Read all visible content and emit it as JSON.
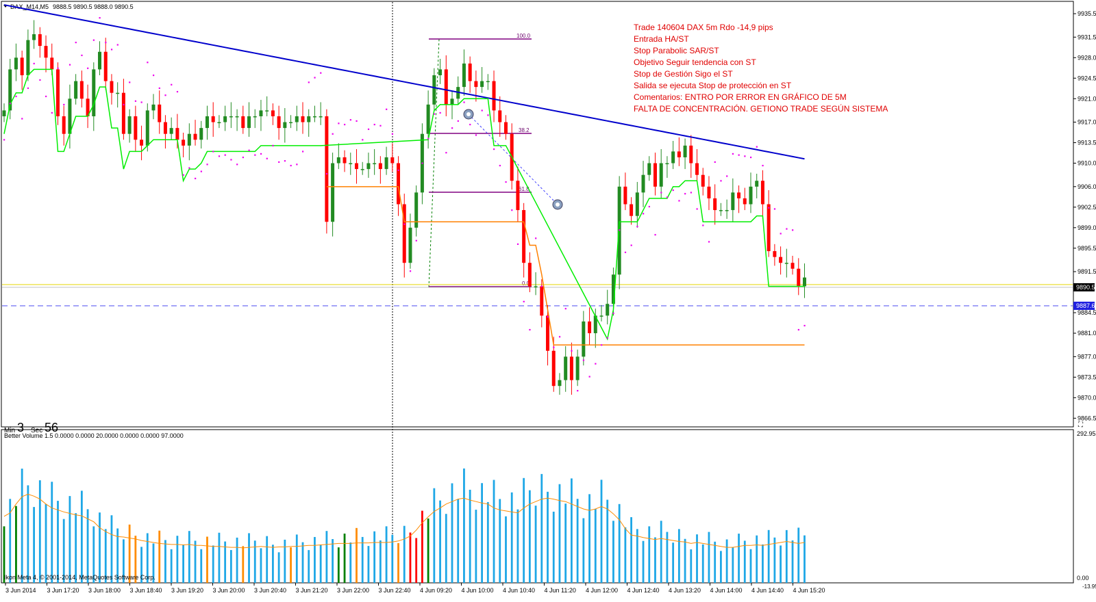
{
  "header": {
    "symbol": "DAX_M14,M5",
    "ohlc": "9888.5 9890.5 9888.0 9890.5"
  },
  "timer": {
    "min_label": "Min",
    "min_value": "3",
    "sec_label": "Sec",
    "sec_value": "56"
  },
  "annotation": [
    "Trade 140604 DAX 5m Rdo -14,9 pips",
    "Entrada HA/ST",
    "Stop Parabolic SAR/ST",
    "Objetivo Seguir tendencia con ST",
    "Stop de Gestión  Sigo el ST",
    "Salida se ejecuta Stop de protección en ST",
    "Comentarios: ENTRO POR ERROR EN GRÁFICO DE 5M",
    "FALTA DE CONCENTRACIÓN. GETIONO TRADE SEGÚN SISTEMA"
  ],
  "fib_levels": [
    "100.0",
    "38.2",
    "61.8",
    "0.0"
  ],
  "volume_header": "Better Volume 1.5 0.0000 0.0000 20.0000 0.0000 0.0000 97.0000",
  "copyright": "Ikon Meta 4, © 2001-2014, MetaQuotes Software Corp.",
  "price_axis": [
    "9935.5",
    "9931.5",
    "9928.0",
    "9924.5",
    "9921.0",
    "9917.0",
    "9913.5",
    "9910.0",
    "9906.0",
    "9902.5",
    "9899.0",
    "9895.5",
    "9891.5",
    "9884.5",
    "9881.0",
    "9877.0",
    "9873.5",
    "9870.0",
    "9866.5"
  ],
  "price_badges": {
    "current": "9890.5",
    "line": "9887.6"
  },
  "volume_axis": [
    "292.95",
    "0.00",
    "-13.95"
  ],
  "time_axis": [
    "3 Jun 2014",
    "3 Jun 17:20",
    "3 Jun 18:00",
    "3 Jun 18:40",
    "3 Jun 19:20",
    "3 Jun 20:00",
    "3 Jun 20:40",
    "3 Jun 21:20",
    "3 Jun 22:00",
    "3 Jun 22:40",
    "4 Jun 09:20",
    "4 Jun 10:00",
    "4 Jun 10:40",
    "4 Jun 11:20",
    "4 Jun 12:00",
    "4 Jun 12:40",
    "4 Jun 13:20",
    "4 Jun 14:00",
    "4 Jun 14:40",
    "4 Jun 15:20"
  ],
  "colors": {
    "bull": "#228b22",
    "bear": "#ff0000",
    "ma": "#0000cc",
    "supertrend_up": "#00ee00",
    "supertrend_down": "#ff8000",
    "sar": "#ee00ee",
    "volume": "#1ea7e6",
    "volume_ma": "#ff8c00",
    "fib": "#800080"
  },
  "chart_data": {
    "type": "candlestick",
    "title": "DAX_M14,M5",
    "ylim": [
      9866.5,
      9937.5
    ],
    "closes": [
      9919,
      9926,
      9928,
      9925,
      9931,
      9932,
      9930,
      9928,
      9926,
      9918,
      9915,
      9921,
      9924,
      9921,
      9918,
      9926,
      9929,
      9924,
      9922,
      9922,
      9915,
      9918,
      9914,
      9913,
      9919,
      9920,
      9917,
      9915,
      9916,
      9914,
      9913,
      9915,
      9914,
      9916,
      9918,
      9917,
      9917,
      9918,
      9918,
      9918,
      9916,
      9918,
      9918,
      9919,
      9919,
      9918,
      9916,
      9917,
      9917,
      9918,
      9917,
      9918,
      9918,
      9918,
      9900,
      9910,
      9911,
      9910,
      9910,
      9909,
      9909,
      9910,
      9910,
      9909,
      9911,
      9910,
      9903,
      9893,
      9899,
      9905,
      9915,
      9920,
      9925,
      9926,
      9920,
      9921,
      9923,
      9927,
      9924,
      9923,
      9924,
      9924,
      9919,
      9917,
      9915,
      9907,
      9902,
      9893,
      9889,
      9889,
      9884,
      9878,
      9872,
      9873,
      9877,
      9873,
      9877,
      9883,
      9881,
      9884,
      9884,
      9886,
      9891,
      9906,
      9903,
      9901,
      9905,
      9908,
      9910,
      9906,
      9910,
      9910,
      9912,
      9911,
      9913,
      9910,
      9908,
      9906,
      9904,
      9902,
      9902,
      9902,
      9905,
      9904,
      9903,
      9906,
      9907,
      9903,
      9895,
      9894,
      9893,
      9893,
      9892,
      9889,
      9890.5
    ],
    "volume_ma": [
      135,
      142,
      160,
      175,
      180,
      176,
      170,
      160,
      152,
      148,
      144,
      141,
      138,
      136,
      130,
      124,
      112,
      104,
      98,
      94,
      93,
      91,
      89,
      86,
      84,
      82,
      80,
      79,
      78,
      78,
      77,
      78,
      76,
      76,
      75,
      74,
      74,
      73,
      72,
      72,
      71,
      72,
      73,
      74,
      73,
      72,
      73,
      73,
      74,
      74,
      75,
      76,
      76,
      77,
      78,
      79,
      80,
      80,
      80,
      81,
      81,
      81,
      82,
      82,
      82,
      83,
      85,
      89,
      95,
      107,
      122,
      134,
      145,
      152,
      160,
      165,
      170,
      172,
      168,
      165,
      162,
      160,
      152,
      148,
      146,
      144,
      142,
      152,
      160,
      165,
      170,
      172,
      170,
      167,
      165,
      160,
      155,
      150,
      147,
      150,
      155,
      150,
      140,
      128,
      110,
      97,
      95,
      92,
      90,
      88,
      90,
      88,
      86,
      84,
      83,
      80,
      82,
      80,
      78,
      76,
      74,
      72,
      72,
      74,
      76,
      76,
      77,
      76,
      78,
      80,
      82,
      84,
      82,
      80,
      82
    ]
  }
}
